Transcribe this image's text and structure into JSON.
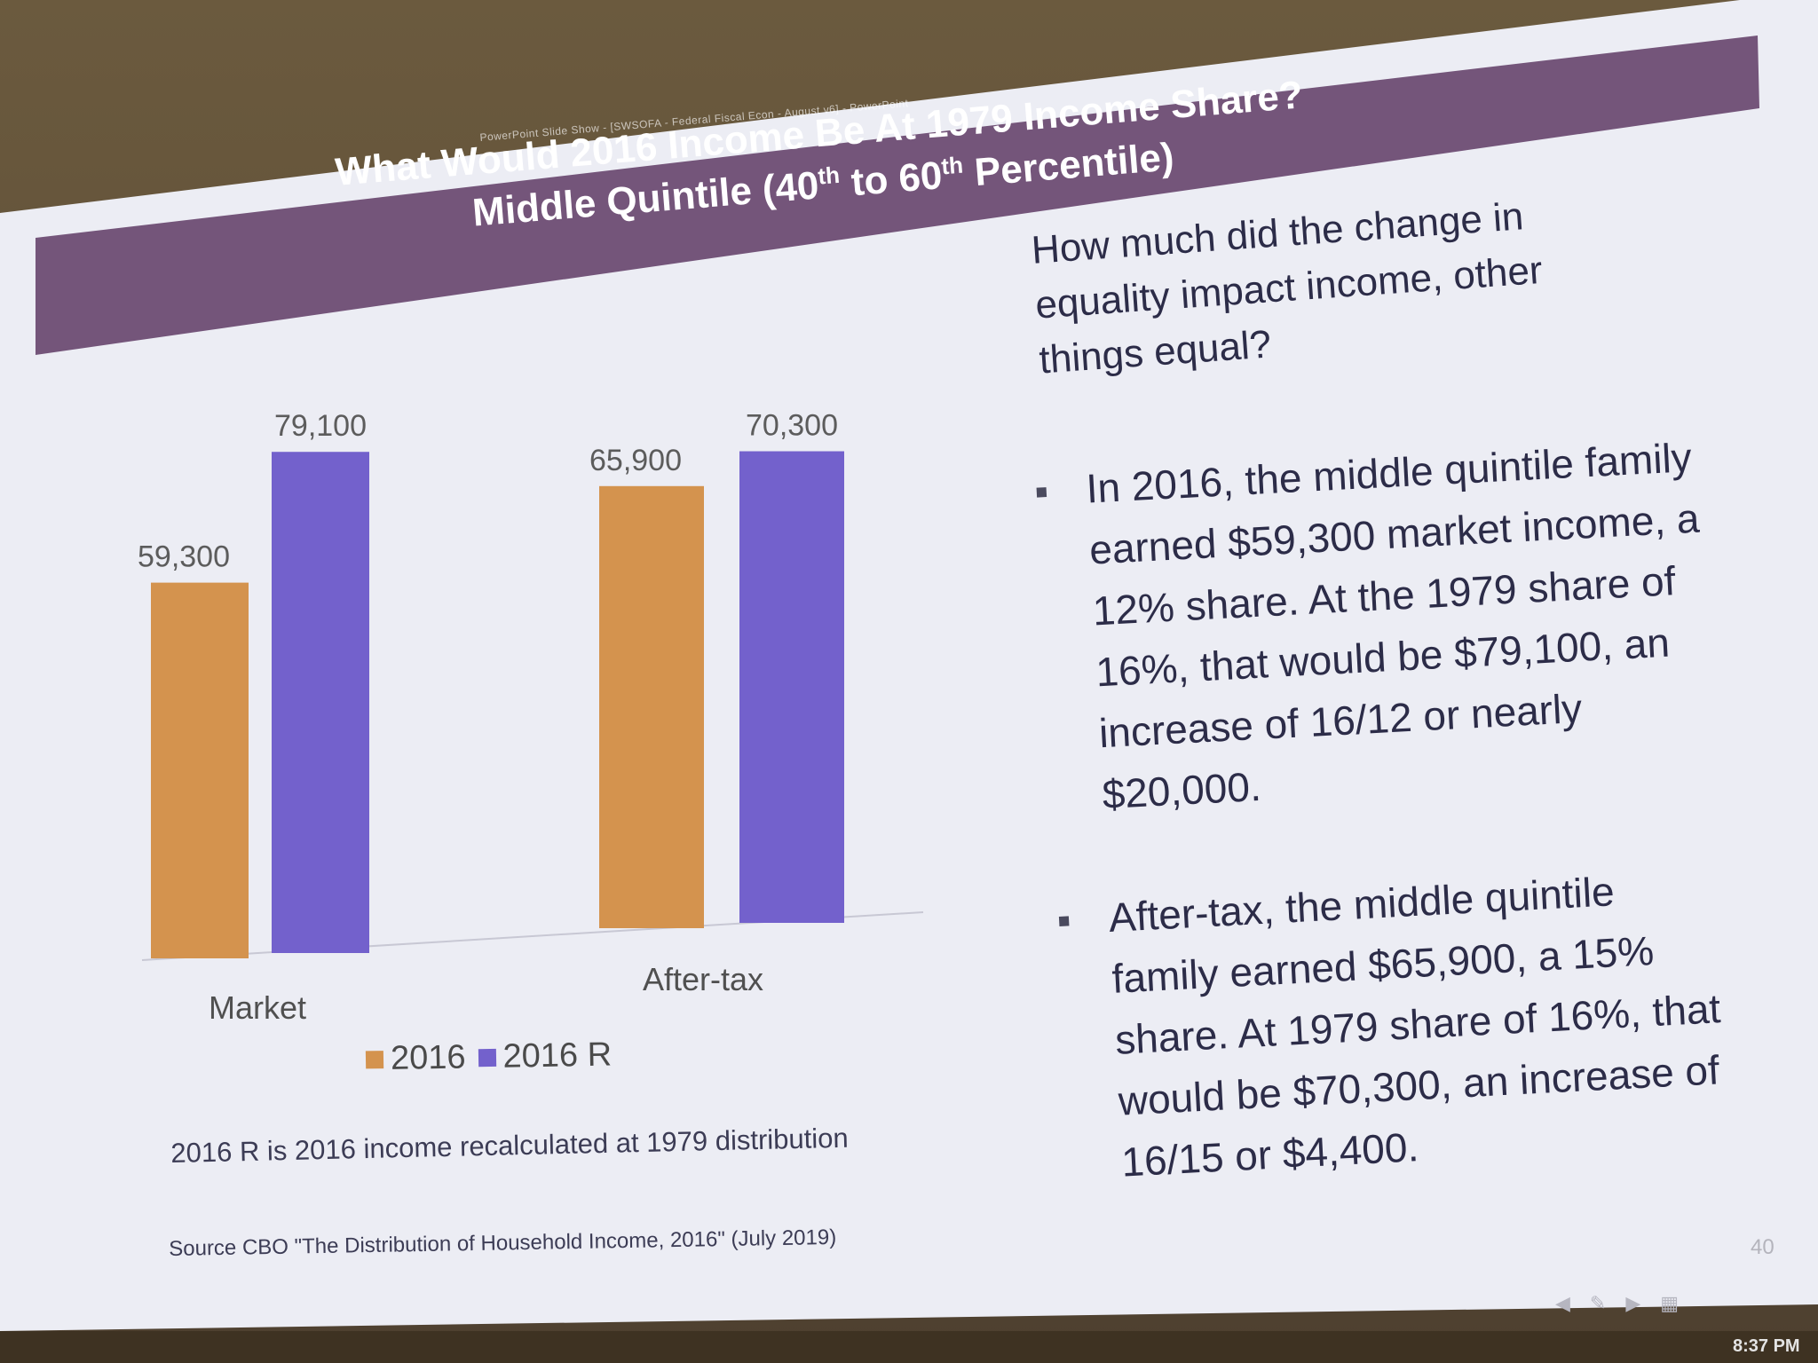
{
  "slide": {
    "ppt_bar_text": "PowerPoint Slide Show - [SWSOFA - Federal Fiscal Econ - August v6] - PowerPoint",
    "title_line1": "What Would 2016 Income Be At 1979 Income Share?",
    "title_line2_pre": "Middle Quintile (40",
    "title_sup1": "th",
    "title_line2_mid": " to 60",
    "title_sup2": "th",
    "title_line2_post": " Percentile)",
    "question": "How much did the change in equality impact income, other things equal?",
    "bullets": [
      "In 2016, the middle quintile family earned $59,300 market income, a 12% share.  At the 1979 share of 16%, that would be $79,100, an increase of 16/12 or nearly $20,000.",
      "After-tax, the middle quintile family earned $65,900, a 15% share.  At 1979 share of 16%, that would be $70,300, an increase of 16/15 or $4,400."
    ],
    "note": "2016 R is 2016 income recalculated at 1979 distribution",
    "source": "Source  CBO \"The Distribution of Household Income, 2016\" (July 2019)",
    "page_number": "40",
    "clock": "8:37 PM"
  },
  "chart_data": {
    "type": "bar",
    "categories": [
      "Market",
      "After-tax"
    ],
    "series": [
      {
        "name": "2016",
        "values": [
          59300,
          65900
        ],
        "labels": [
          "59,300",
          "65,900"
        ],
        "color": "#d4934e"
      },
      {
        "name": "2016 R",
        "values": [
          79100,
          70300
        ],
        "labels": [
          "79,100",
          "70,300"
        ],
        "color": "#7361cc"
      }
    ],
    "legend_position": "bottom",
    "grid": false,
    "ylim": [
      0,
      80000
    ]
  }
}
